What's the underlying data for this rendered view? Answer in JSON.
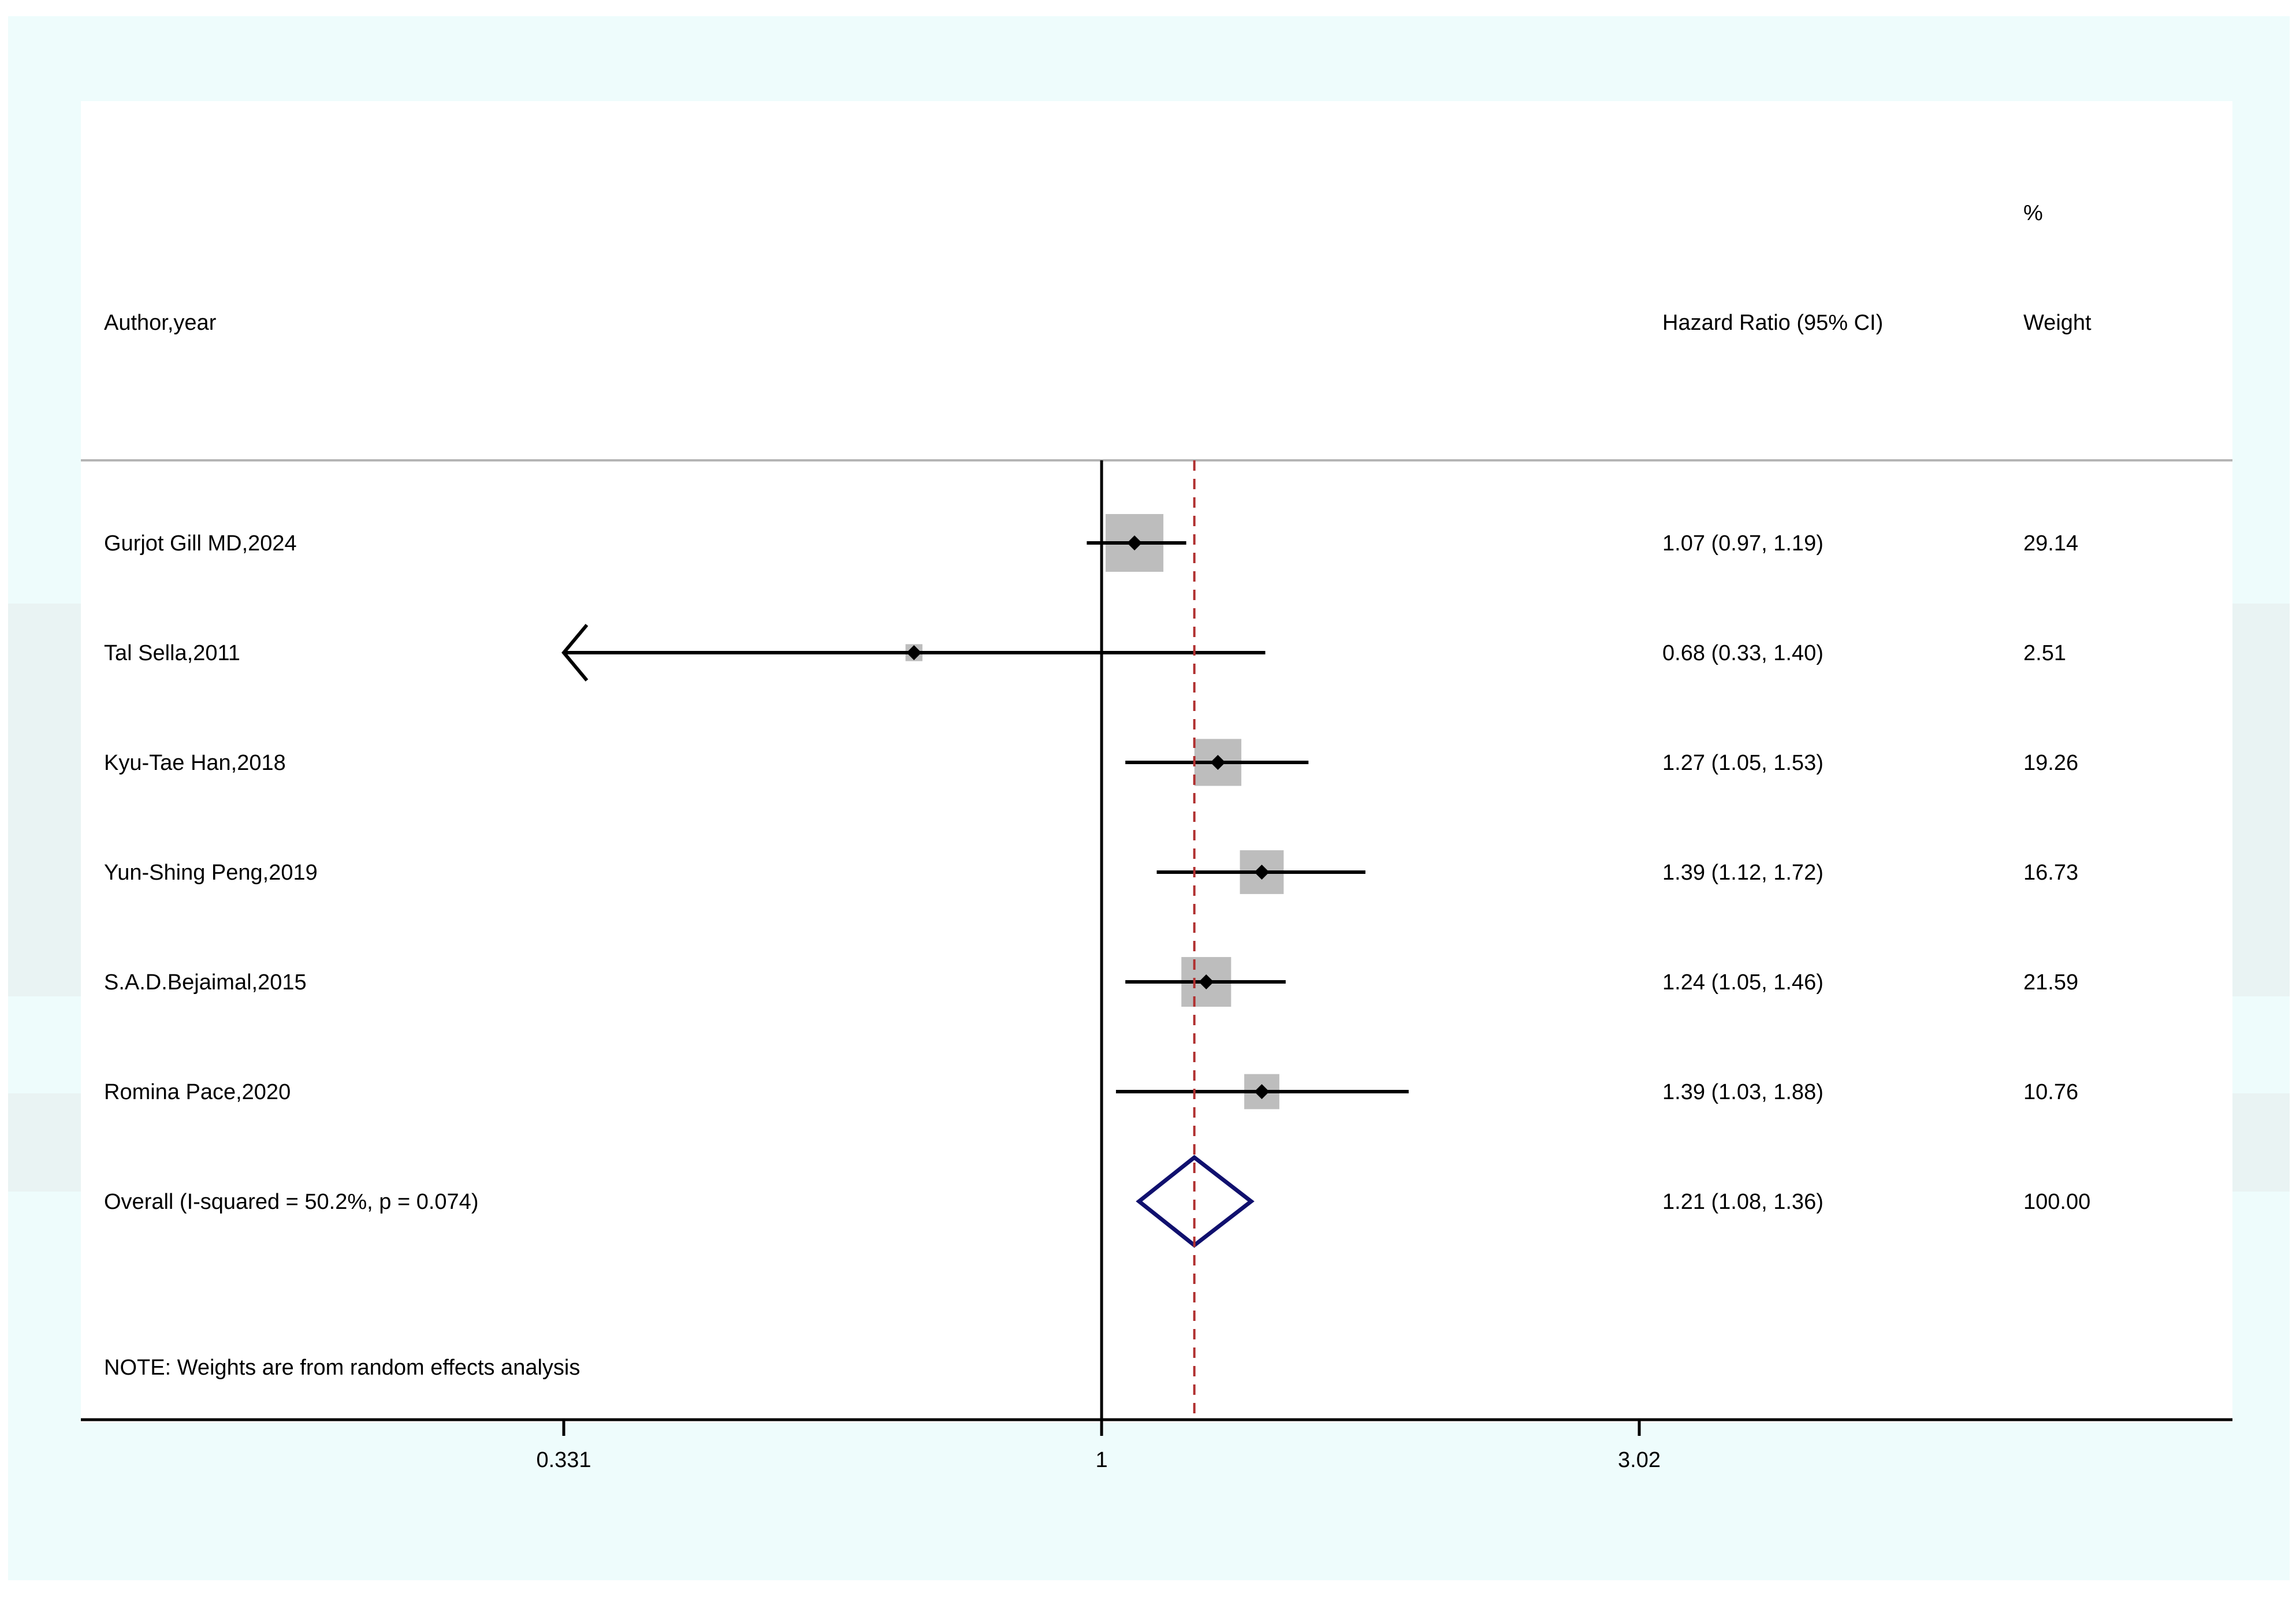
{
  "chart_data": {
    "type": "forest",
    "headers": {
      "study": "Author,year",
      "effect": "Hazard Ratio (95% CI)",
      "weight_top": "%",
      "weight": "Weight"
    },
    "studies": [
      {
        "label": "Gurjot Gill MD,2024",
        "hr": 1.07,
        "lo": 0.97,
        "hi": 1.19,
        "ci_text": "1.07 (0.97, 1.19)",
        "weight": 29.14,
        "weight_text": "29.14"
      },
      {
        "label": "Tal Sella,2011",
        "hr": 0.68,
        "lo": 0.33,
        "hi": 1.4,
        "ci_text": "0.68 (0.33, 1.40)",
        "weight": 2.51,
        "weight_text": "2.51"
      },
      {
        "label": "Kyu-Tae Han,2018",
        "hr": 1.27,
        "lo": 1.05,
        "hi": 1.53,
        "ci_text": "1.27 (1.05, 1.53)",
        "weight": 19.26,
        "weight_text": "19.26"
      },
      {
        "label": "Yun-Shing Peng,2019",
        "hr": 1.39,
        "lo": 1.12,
        "hi": 1.72,
        "ci_text": "1.39 (1.12, 1.72)",
        "weight": 16.73,
        "weight_text": "16.73"
      },
      {
        "label": "S.A.D.Bejaimal,2015",
        "hr": 1.24,
        "lo": 1.05,
        "hi": 1.46,
        "ci_text": "1.24 (1.05, 1.46)",
        "weight": 21.59,
        "weight_text": "21.59"
      },
      {
        "label": "Romina Pace,2020",
        "hr": 1.39,
        "lo": 1.03,
        "hi": 1.88,
        "ci_text": "1.39 (1.03, 1.88)",
        "weight": 10.76,
        "weight_text": "10.76"
      }
    ],
    "overall": {
      "label": "Overall  (I-squared = 50.2%, p = 0.074)",
      "hr": 1.21,
      "lo": 1.08,
      "hi": 1.36,
      "ci_text": "1.21 (1.08, 1.36)",
      "weight_text": "100.00"
    },
    "note": "NOTE: Weights are from random effects analysis",
    "x_scale": "log",
    "xlim": [
      0.331,
      3.02
    ],
    "x_ticks": [
      {
        "value": 0.331,
        "label": "0.331"
      },
      {
        "value": 1,
        "label": "1"
      },
      {
        "value": 3.02,
        "label": "3.02"
      }
    ],
    "null_line": 1,
    "colors": {
      "background": "#eefcfc",
      "band": "#e9f3f3",
      "panel": "#ffffff",
      "box": "#bdbdbd",
      "diamond": "#10106e",
      "overall_line": "#b03030"
    }
  }
}
